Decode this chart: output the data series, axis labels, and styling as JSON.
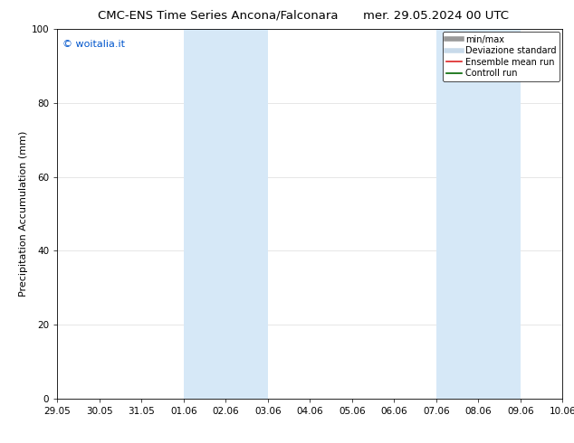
{
  "title_left": "CMC-ENS Time Series Ancona/Falconara",
  "title_right": "mer. 29.05.2024 00 UTC",
  "ylabel": "Precipitation Accumulation (mm)",
  "watermark": "© woitalia.it",
  "watermark_color": "#0055cc",
  "xlim_left": 0,
  "xlim_right": 12.0,
  "ylim_bottom": 0,
  "ylim_top": 100,
  "yticks": [
    0,
    20,
    40,
    60,
    80,
    100
  ],
  "xtick_labels": [
    "29.05",
    "30.05",
    "31.05",
    "01.06",
    "02.06",
    "03.06",
    "04.06",
    "05.06",
    "06.06",
    "07.06",
    "08.06",
    "09.06",
    "10.06"
  ],
  "shaded_bands": [
    {
      "x_start": 3.0,
      "x_end": 5.0
    },
    {
      "x_start": 9.0,
      "x_end": 11.0
    }
  ],
  "shade_color": "#d6e8f7",
  "legend_entries": [
    {
      "label": "min/max",
      "color": "#999999",
      "lw": 4,
      "style": "solid"
    },
    {
      "label": "Deviazione standard",
      "color": "#c8daea",
      "lw": 4,
      "style": "solid"
    },
    {
      "label": "Ensemble mean run",
      "color": "#dd2222",
      "lw": 1.2,
      "style": "solid"
    },
    {
      "label": "Controll run",
      "color": "#006600",
      "lw": 1.2,
      "style": "solid"
    }
  ],
  "bg_color": "#ffffff",
  "grid_color": "#dddddd",
  "title_fontsize": 9.5,
  "label_fontsize": 8,
  "tick_fontsize": 7.5,
  "watermark_fontsize": 8,
  "legend_fontsize": 7
}
